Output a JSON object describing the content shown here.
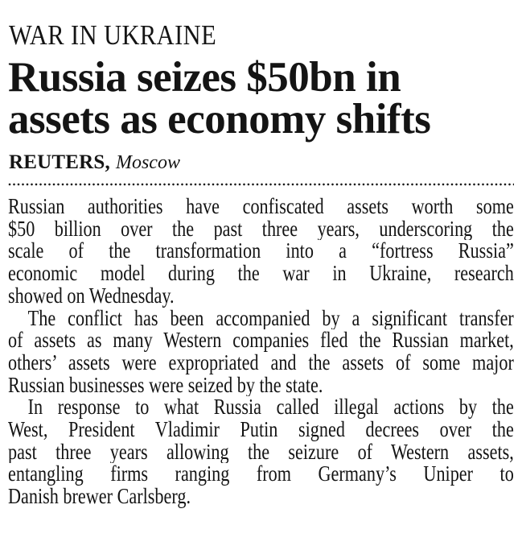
{
  "colors": {
    "background": "#ffffff",
    "text": "#141414"
  },
  "kicker": "WAR IN UKRAINE",
  "headline": {
    "lines": [
      "Russia seizes $50bn in",
      "assets as economy shifts"
    ]
  },
  "byline": {
    "agency": "REUTERS,",
    "location": "Moscow"
  },
  "article": {
    "paragraphs": [
      {
        "indent": false,
        "lines": [
          "Russian authorities have confiscated assets worth some",
          "$50 billion over the past three years, underscoring the",
          "scale of the transformation into a “fortress Russia”",
          "economic model during the war in Ukraine, research",
          "showed on Wednesday."
        ]
      },
      {
        "indent": true,
        "lines": [
          "The conflict has been accompanied by a significant transfer",
          "of assets as many Western companies fled the Russian market,",
          "others’ assets were expropriated and the assets of some major",
          "Russian businesses were seized by the state."
        ]
      },
      {
        "indent": true,
        "lines": [
          "In response to what Russia called illegal actions by the",
          "West, President Vladimir Putin signed decrees over the",
          "past three years allowing the seizure of Western assets,",
          "entangling firms ranging from Germany’s Uniper to",
          "Danish brewer Carlsberg."
        ]
      }
    ]
  }
}
